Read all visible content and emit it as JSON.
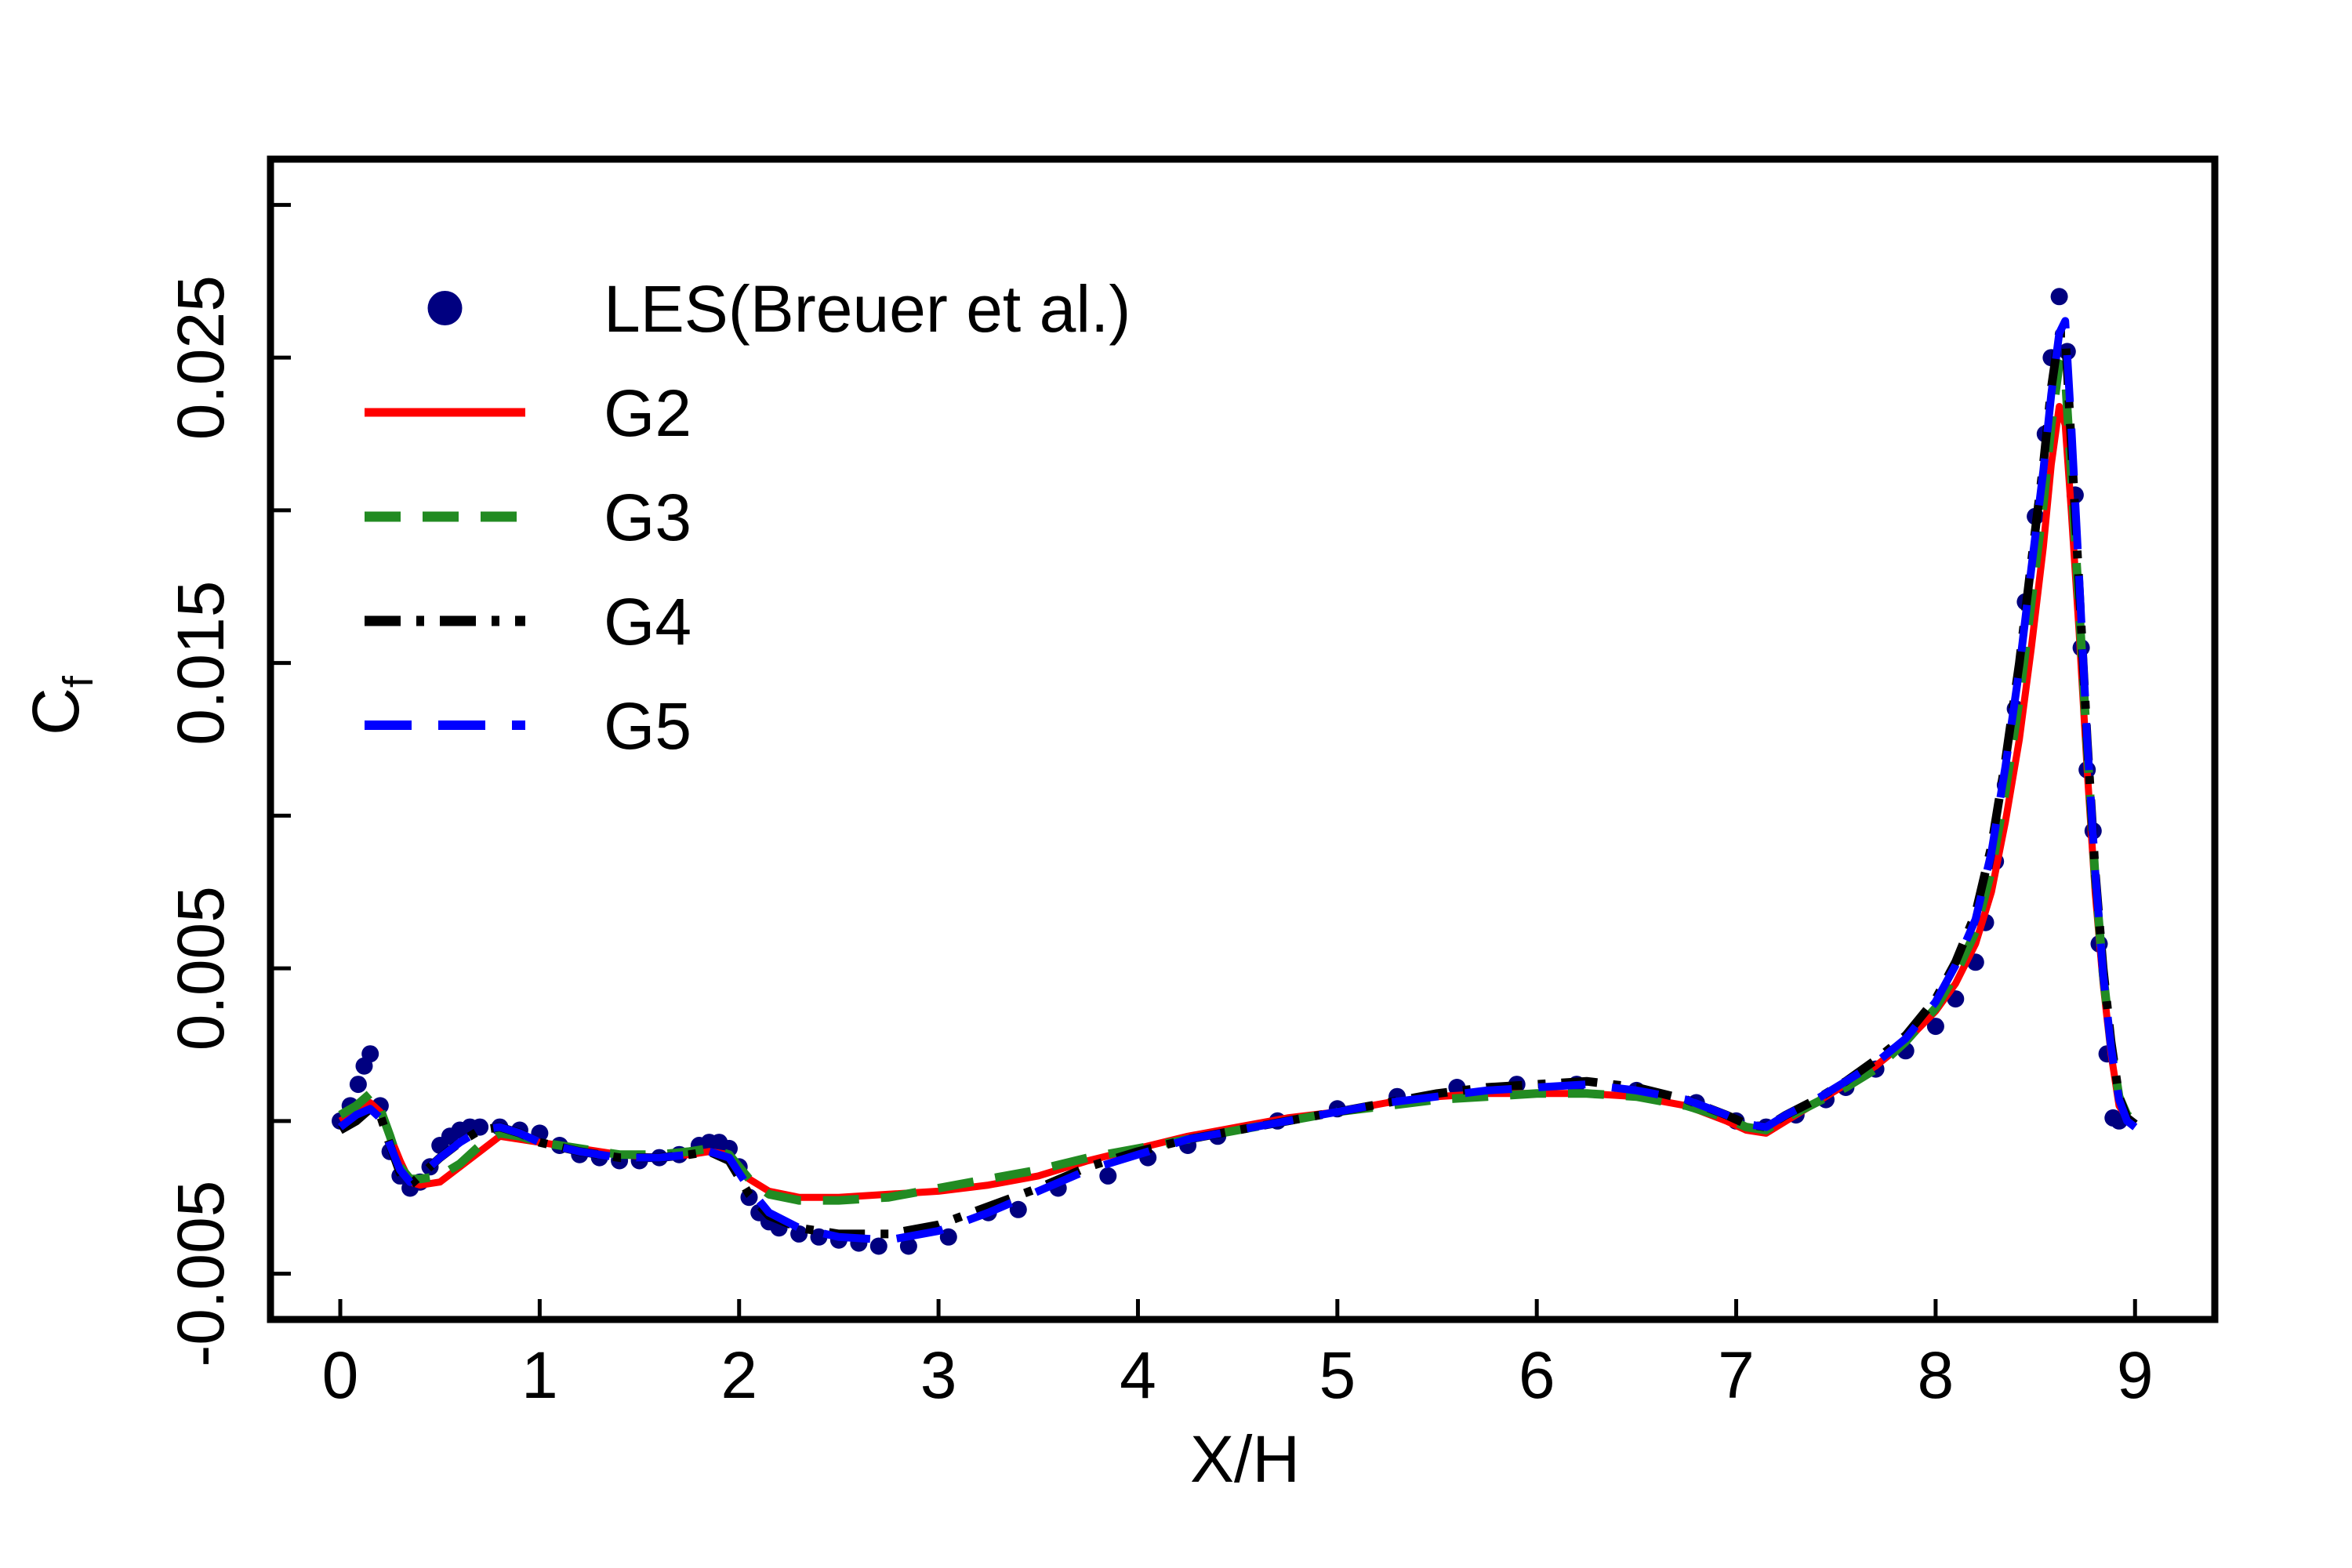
{
  "chart_data": {
    "type": "line",
    "xlabel": "X/H",
    "ylabel": "C",
    "ylabel_subscript": "f",
    "xlim": [
      -0.35,
      9.4
    ],
    "ylim": [
      -0.0065,
      0.0315
    ],
    "xticks": [
      0,
      1,
      2,
      3,
      4,
      5,
      6,
      7,
      8,
      9
    ],
    "xtick_labels": [
      "0",
      "1",
      "2",
      "3",
      "4",
      "5",
      "6",
      "7",
      "8",
      "9"
    ],
    "yticks": [
      -0.005,
      0,
      0.005,
      0.01,
      0.015,
      0.02,
      0.025,
      0.03
    ],
    "ytick_labels": [
      "-0.005",
      "",
      "0.005",
      "",
      "0.015",
      "",
      "0.025",
      ""
    ],
    "grid": false,
    "legend_position": "top-left",
    "series": [
      {
        "name": "LES(Breuer et al.)",
        "style": "markers",
        "color": "#000080",
        "x": [
          0.0,
          0.05,
          0.09,
          0.12,
          0.15,
          0.2,
          0.25,
          0.3,
          0.35,
          0.4,
          0.45,
          0.5,
          0.55,
          0.6,
          0.65,
          0.7,
          0.8,
          0.9,
          1.0,
          1.1,
          1.2,
          1.3,
          1.4,
          1.5,
          1.6,
          1.7,
          1.8,
          1.85,
          1.9,
          1.95,
          2.0,
          2.05,
          2.1,
          2.15,
          2.2,
          2.3,
          2.4,
          2.5,
          2.6,
          2.7,
          2.85,
          3.05,
          3.25,
          3.4,
          3.6,
          3.85,
          4.05,
          4.25,
          4.4,
          4.7,
          5.0,
          5.3,
          5.6,
          5.9,
          6.2,
          6.5,
          6.8,
          7.0,
          7.15,
          7.3,
          7.45,
          7.55,
          7.7,
          7.85,
          8.0,
          8.1,
          8.2,
          8.25,
          8.3,
          8.35,
          8.4,
          8.45,
          8.5,
          8.55,
          8.58,
          8.62,
          8.66,
          8.7,
          8.73,
          8.76,
          8.79,
          8.82,
          8.86,
          8.89,
          8.92
        ],
        "y": [
          0.0,
          0.0005,
          0.0012,
          0.0018,
          0.0022,
          0.0005,
          -0.001,
          -0.0018,
          -0.0022,
          -0.002,
          -0.0015,
          -0.0008,
          -0.0005,
          -0.0003,
          -0.0002,
          -0.0002,
          -0.0002,
          -0.0003,
          -0.0004,
          -0.0008,
          -0.0011,
          -0.0012,
          -0.0013,
          -0.0013,
          -0.0012,
          -0.0011,
          -0.0008,
          -0.0007,
          -0.0007,
          -0.0009,
          -0.0015,
          -0.0025,
          -0.003,
          -0.0033,
          -0.0035,
          -0.0037,
          -0.0038,
          -0.0039,
          -0.004,
          -0.0041,
          -0.0041,
          -0.0038,
          -0.003,
          -0.0029,
          -0.0022,
          -0.0018,
          -0.0012,
          -0.0008,
          -0.0005,
          0.0,
          0.0004,
          0.0008,
          0.0011,
          0.0012,
          0.0012,
          0.001,
          0.0006,
          0.0,
          -0.0002,
          0.0002,
          0.0007,
          0.0011,
          0.0017,
          0.0023,
          0.0031,
          0.004,
          0.0052,
          0.0065,
          0.0085,
          0.011,
          0.0135,
          0.017,
          0.0198,
          0.0225,
          0.025,
          0.027,
          0.0252,
          0.0205,
          0.0155,
          0.0115,
          0.0095,
          0.0058,
          0.0022,
          0.0001,
          0.0
        ]
      },
      {
        "name": "G2",
        "style": "solid",
        "color": "#ff0000",
        "x": [
          0.0,
          0.08,
          0.15,
          0.2,
          0.25,
          0.3,
          0.35,
          0.4,
          0.5,
          0.6,
          0.7,
          0.8,
          0.9,
          1.0,
          1.2,
          1.4,
          1.6,
          1.75,
          1.85,
          1.95,
          2.05,
          2.15,
          2.3,
          2.5,
          2.75,
          3.0,
          3.25,
          3.5,
          3.75,
          4.0,
          4.25,
          4.5,
          4.75,
          5.0,
          5.25,
          5.5,
          5.75,
          6.0,
          6.25,
          6.5,
          6.75,
          6.95,
          7.05,
          7.15,
          7.25,
          7.4,
          7.55,
          7.7,
          7.85,
          8.0,
          8.1,
          8.2,
          8.28,
          8.35,
          8.42,
          8.48,
          8.54,
          8.58,
          8.62,
          8.65,
          8.68,
          8.72,
          8.76,
          8.8,
          8.84,
          8.88,
          8.92,
          8.96,
          9.0
        ],
        "y": [
          0.0,
          0.0003,
          0.0006,
          0.0003,
          -0.0005,
          -0.0013,
          -0.002,
          -0.0021,
          -0.002,
          -0.0015,
          -0.001,
          -0.0005,
          -0.0006,
          -0.0007,
          -0.0009,
          -0.0011,
          -0.0012,
          -0.0011,
          -0.001,
          -0.0011,
          -0.0019,
          -0.0023,
          -0.0025,
          -0.0025,
          -0.0024,
          -0.0023,
          -0.0021,
          -0.0018,
          -0.0013,
          -0.0009,
          -0.0005,
          -0.0002,
          0.0001,
          0.0003,
          0.0006,
          0.0008,
          0.0009,
          0.0009,
          0.0009,
          0.0008,
          0.0005,
          0.0,
          -0.0003,
          -0.0004,
          0.0,
          0.0006,
          0.0012,
          0.0018,
          0.0026,
          0.0036,
          0.0045,
          0.0058,
          0.0075,
          0.0098,
          0.0125,
          0.0155,
          0.0188,
          0.0215,
          0.0234,
          0.0228,
          0.02,
          0.016,
          0.0115,
          0.0075,
          0.0045,
          0.0022,
          0.0005,
          0.0001,
          -0.0001
        ]
      },
      {
        "name": "G3",
        "style": "dashed",
        "color": "#228b22",
        "x": [
          0.0,
          0.08,
          0.15,
          0.2,
          0.25,
          0.3,
          0.35,
          0.4,
          0.5,
          0.6,
          0.7,
          0.8,
          0.9,
          1.0,
          1.2,
          1.4,
          1.6,
          1.75,
          1.85,
          1.95,
          2.05,
          2.15,
          2.3,
          2.5,
          2.75,
          3.0,
          3.25,
          3.5,
          3.75,
          4.0,
          4.25,
          4.5,
          4.75,
          5.0,
          5.25,
          5.5,
          5.75,
          6.0,
          6.25,
          6.5,
          6.75,
          6.95,
          7.05,
          7.15,
          7.25,
          7.4,
          7.55,
          7.7,
          7.85,
          8.0,
          8.1,
          8.2,
          8.28,
          8.35,
          8.42,
          8.48,
          8.54,
          8.58,
          8.62,
          8.65,
          8.68,
          8.72,
          8.76,
          8.8,
          8.84,
          8.88,
          8.92,
          8.96,
          9.0
        ],
        "y": [
          0.0002,
          0.0005,
          0.0009,
          0.0004,
          -0.0005,
          -0.0015,
          -0.0019,
          -0.0019,
          -0.0018,
          -0.0014,
          -0.0008,
          -0.0004,
          -0.0005,
          -0.0007,
          -0.0009,
          -0.0011,
          -0.0011,
          -0.001,
          -0.0009,
          -0.0011,
          -0.0019,
          -0.0024,
          -0.0026,
          -0.0026,
          -0.0025,
          -0.0022,
          -0.0019,
          -0.0016,
          -0.0012,
          -0.0009,
          -0.0006,
          -0.0003,
          0.0,
          0.0003,
          0.0005,
          0.0007,
          0.0008,
          0.0009,
          0.0009,
          0.0008,
          0.0005,
          0.0001,
          -0.0002,
          -0.0003,
          0.0001,
          0.0006,
          0.0011,
          0.0017,
          0.0026,
          0.0037,
          0.0048,
          0.0062,
          0.0082,
          0.0108,
          0.0138,
          0.017,
          0.0202,
          0.0228,
          0.0248,
          0.0244,
          0.0212,
          0.0168,
          0.0122,
          0.008,
          0.0048,
          0.0025,
          0.0008,
          0.0002,
          0.0
        ]
      },
      {
        "name": "G4",
        "style": "dashdot",
        "color": "#000000",
        "x": [
          0.0,
          0.08,
          0.15,
          0.2,
          0.25,
          0.3,
          0.35,
          0.4,
          0.5,
          0.6,
          0.7,
          0.8,
          0.9,
          1.0,
          1.2,
          1.4,
          1.6,
          1.75,
          1.85,
          1.95,
          2.05,
          2.15,
          2.3,
          2.5,
          2.75,
          3.0,
          3.25,
          3.5,
          3.75,
          4.0,
          4.25,
          4.5,
          4.75,
          5.0,
          5.25,
          5.5,
          5.75,
          6.0,
          6.25,
          6.5,
          6.75,
          6.95,
          7.05,
          7.15,
          7.25,
          7.4,
          7.55,
          7.7,
          7.85,
          8.0,
          8.1,
          8.2,
          8.28,
          8.35,
          8.42,
          8.48,
          8.54,
          8.58,
          8.62,
          8.65,
          8.68,
          8.72,
          8.76,
          8.8,
          8.84,
          8.88,
          8.92,
          8.96,
          9.0
        ],
        "y": [
          -0.0003,
          0.0,
          0.0004,
          0.0002,
          -0.0008,
          -0.0017,
          -0.0021,
          -0.0018,
          -0.0012,
          -0.0007,
          -0.0003,
          -0.0002,
          -0.0004,
          -0.0007,
          -0.001,
          -0.0012,
          -0.0012,
          -0.0011,
          -0.001,
          -0.0013,
          -0.0024,
          -0.0031,
          -0.0035,
          -0.0037,
          -0.0037,
          -0.0034,
          -0.0028,
          -0.0022,
          -0.0015,
          -0.001,
          -0.0006,
          -0.0003,
          0.0,
          0.0003,
          0.0006,
          0.0009,
          0.0011,
          0.0012,
          0.0013,
          0.0011,
          0.0007,
          0.0002,
          -0.0001,
          -0.0002,
          0.0002,
          0.0007,
          0.0013,
          0.002,
          0.0028,
          0.004,
          0.0052,
          0.0068,
          0.009,
          0.0118,
          0.015,
          0.0183,
          0.0215,
          0.024,
          0.0258,
          0.0258,
          0.0222,
          0.0175,
          0.0125,
          0.0082,
          0.005,
          0.0026,
          0.0008,
          0.0001,
          -0.0001
        ]
      },
      {
        "name": "G5",
        "style": "longdash",
        "color": "#0000ff",
        "x": [
          0.0,
          0.08,
          0.15,
          0.2,
          0.25,
          0.3,
          0.35,
          0.4,
          0.5,
          0.6,
          0.7,
          0.8,
          0.9,
          1.0,
          1.2,
          1.4,
          1.6,
          1.75,
          1.85,
          1.95,
          2.05,
          2.15,
          2.3,
          2.5,
          2.75,
          3.0,
          3.25,
          3.5,
          3.75,
          4.0,
          4.25,
          4.5,
          4.75,
          5.0,
          5.25,
          5.5,
          5.75,
          6.0,
          6.25,
          6.5,
          6.75,
          6.95,
          7.05,
          7.15,
          7.25,
          7.4,
          7.55,
          7.7,
          7.85,
          8.0,
          8.1,
          8.2,
          8.28,
          8.35,
          8.42,
          8.48,
          8.54,
          8.58,
          8.62,
          8.65,
          8.68,
          8.72,
          8.76,
          8.8,
          8.84,
          8.88,
          8.92,
          8.96,
          9.0
        ],
        "y": [
          -0.0002,
          0.0002,
          0.0004,
          0.0001,
          -0.0008,
          -0.0016,
          -0.002,
          -0.0018,
          -0.0012,
          -0.0007,
          -0.0003,
          -0.0002,
          -0.0004,
          -0.0007,
          -0.001,
          -0.0012,
          -0.0012,
          -0.0011,
          -0.001,
          -0.0012,
          -0.0022,
          -0.003,
          -0.0035,
          -0.0038,
          -0.0039,
          -0.0036,
          -0.003,
          -0.0023,
          -0.0016,
          -0.0011,
          -0.0006,
          -0.0003,
          0.0,
          0.0003,
          0.0006,
          0.0008,
          0.001,
          0.0011,
          0.0012,
          0.001,
          0.0007,
          0.0002,
          -0.0001,
          -0.0002,
          0.0002,
          0.0007,
          0.0013,
          0.0019,
          0.0027,
          0.0039,
          0.0051,
          0.0066,
          0.0088,
          0.0116,
          0.0148,
          0.0181,
          0.0213,
          0.0238,
          0.0258,
          0.0262,
          0.0228,
          0.0178,
          0.0125,
          0.0082,
          0.0048,
          0.0024,
          0.0007,
          0.0,
          -0.0002
        ]
      }
    ]
  }
}
